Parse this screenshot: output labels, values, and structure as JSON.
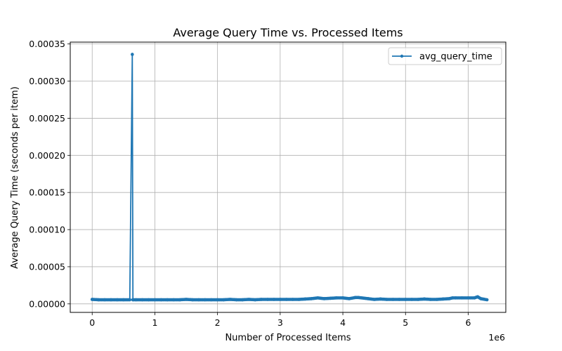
{
  "chart_data": {
    "type": "line",
    "title": "Average Query Time vs. Processed Items",
    "xlabel": "Number of Processed Items",
    "ylabel": "Average Query Time (seconds per item)",
    "x_offset_label": "1e6",
    "xlim": [
      -350000,
      6600000
    ],
    "ylim": [
      -1.15e-05,
      0.0003525
    ],
    "x_ticks": [
      {
        "value": 0,
        "label": "0"
      },
      {
        "value": 1000000,
        "label": "1"
      },
      {
        "value": 2000000,
        "label": "2"
      },
      {
        "value": 3000000,
        "label": "3"
      },
      {
        "value": 4000000,
        "label": "4"
      },
      {
        "value": 5000000,
        "label": "5"
      },
      {
        "value": 6000000,
        "label": "6"
      }
    ],
    "y_ticks": [
      {
        "value": 0,
        "label": "0.00000"
      },
      {
        "value": 5e-05,
        "label": "0.00005"
      },
      {
        "value": 0.0001,
        "label": "0.00010"
      },
      {
        "value": 0.00015,
        "label": "0.00015"
      },
      {
        "value": 0.0002,
        "label": "0.00020"
      },
      {
        "value": 0.00025,
        "label": "0.00025"
      },
      {
        "value": 0.0003,
        "label": "0.00030"
      },
      {
        "value": 0.00035,
        "label": "0.00035"
      }
    ],
    "grid": true,
    "legend_position": "top-right",
    "line_color": "#1f77b4",
    "series": [
      {
        "name": "avg_query_time",
        "x": [
          0,
          100000,
          200000,
          300000,
          400000,
          500000,
          600000,
          640000,
          650000,
          700000,
          800000,
          900000,
          1000000,
          1100000,
          1200000,
          1300000,
          1400000,
          1500000,
          1600000,
          1700000,
          1800000,
          1900000,
          2000000,
          2100000,
          2200000,
          2300000,
          2400000,
          2500000,
          2600000,
          2700000,
          2800000,
          2900000,
          3000000,
          3100000,
          3200000,
          3300000,
          3400000,
          3500000,
          3600000,
          3700000,
          3800000,
          3900000,
          4000000,
          4100000,
          4200000,
          4250000,
          4300000,
          4400000,
          4500000,
          4600000,
          4700000,
          4800000,
          4900000,
          5000000,
          5100000,
          5200000,
          5300000,
          5400000,
          5500000,
          5600000,
          5700000,
          5750000,
          5800000,
          5900000,
          6000000,
          6100000,
          6150000,
          6200000,
          6300000
        ],
        "y": [
          6e-06,
          5.5e-06,
          5.5e-06,
          5.5e-06,
          5.5e-06,
          5.5e-06,
          5.5e-06,
          0.000336,
          5.5e-06,
          5.5e-06,
          5.5e-06,
          5.5e-06,
          5.5e-06,
          5.5e-06,
          5.5e-06,
          5.5e-06,
          5.5e-06,
          6e-06,
          5.5e-06,
          5.5e-06,
          5.5e-06,
          5.5e-06,
          5.5e-06,
          5.5e-06,
          6e-06,
          5.5e-06,
          5.5e-06,
          6e-06,
          5.5e-06,
          6e-06,
          6e-06,
          6e-06,
          6e-06,
          6e-06,
          6e-06,
          6e-06,
          6.5e-06,
          7e-06,
          8e-06,
          7e-06,
          7.5e-06,
          8e-06,
          8e-06,
          7e-06,
          8.5e-06,
          8.5e-06,
          8e-06,
          7e-06,
          6e-06,
          6.5e-06,
          6e-06,
          6e-06,
          6e-06,
          6e-06,
          6e-06,
          6e-06,
          6.5e-06,
          6e-06,
          6e-06,
          6.5e-06,
          7e-06,
          8e-06,
          8e-06,
          8e-06,
          8e-06,
          8e-06,
          9.5e-06,
          7e-06,
          5.5e-06
        ]
      }
    ]
  }
}
